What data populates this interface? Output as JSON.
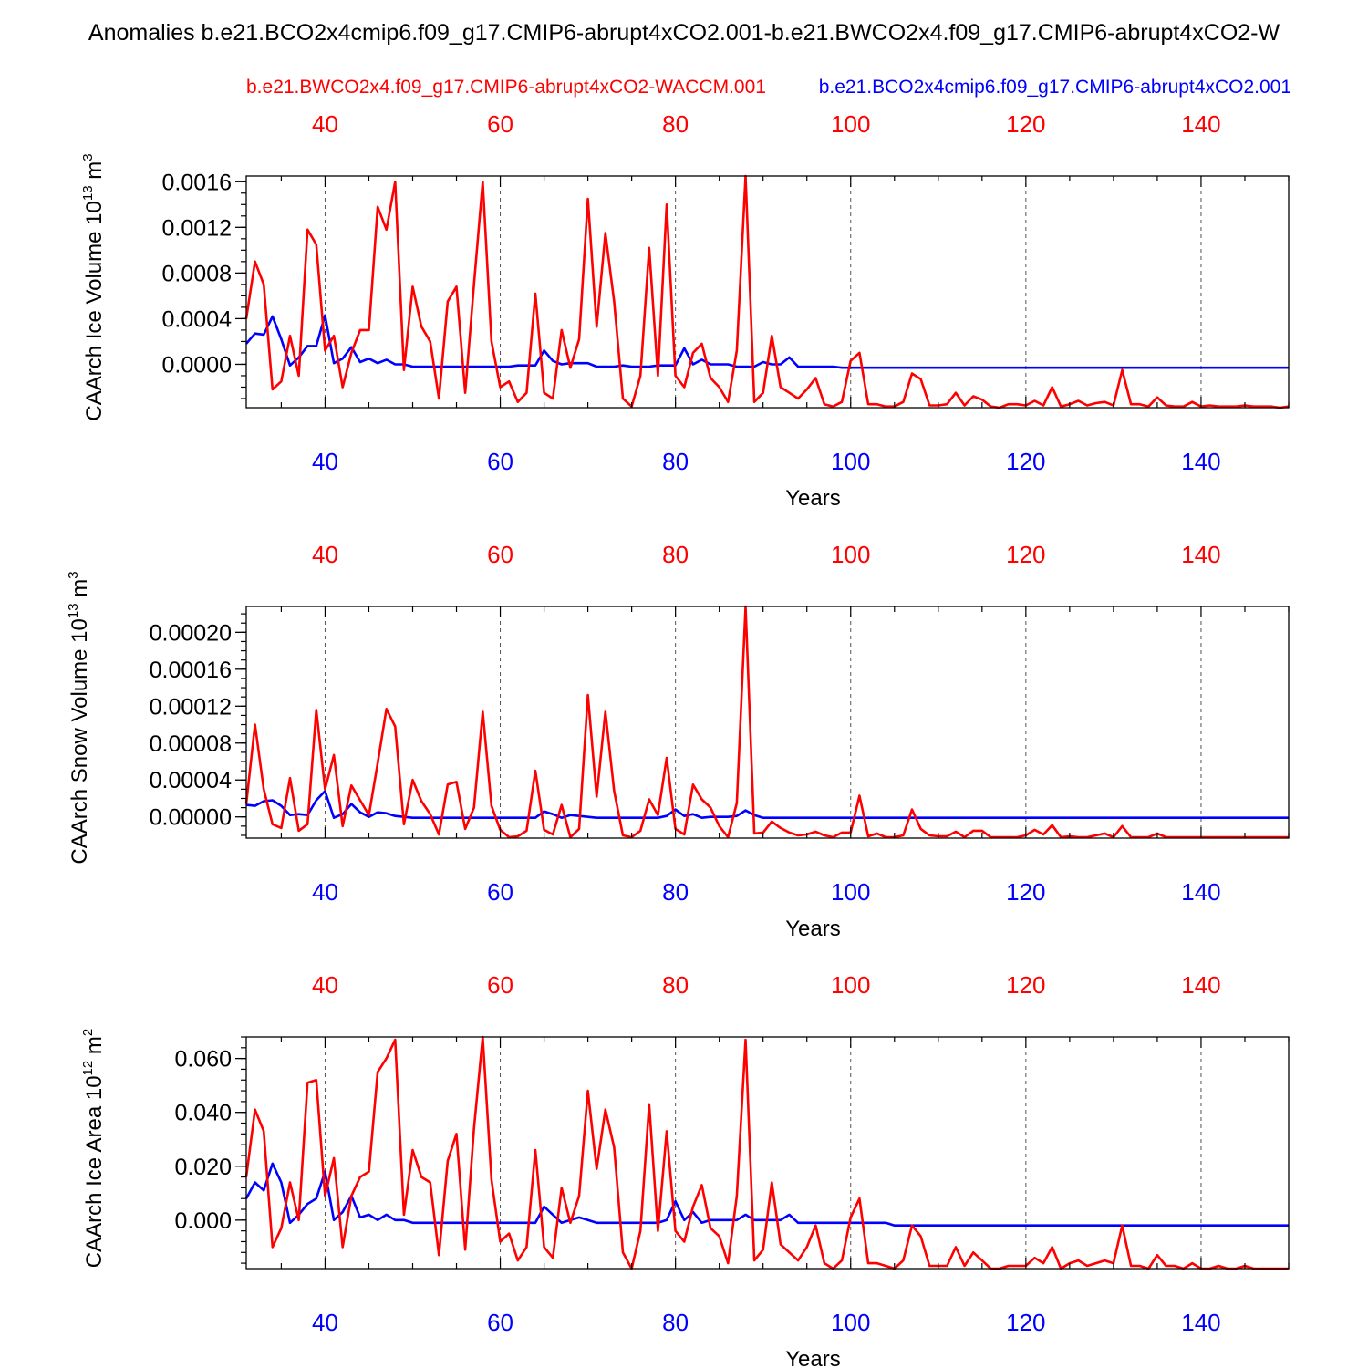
{
  "page_title": "Anomalies b.e21.BCO2x4cmip6.f09_g17.CMIP6-abrupt4xCO2.001-b.e21.BWCO2x4.f09_g17.CMIP6-abrupt4xCO2-W",
  "legend": {
    "red_label": "b.e21.BWCO2x4.f09_g17.CMIP6-abrupt4xCO2-WACCM.001",
    "blue_label": "b.e21.BCO2x4cmip6.f09_g17.CMIP6-abrupt4xCO2.001"
  },
  "colors": {
    "red": "#ff0000",
    "blue": "#0000ff",
    "axis": "#000000"
  },
  "chart_data": [
    {
      "type": "line",
      "ylabel": "CAArch Ice Volume",
      "yunit_base": "10",
      "yunit_exp": "13",
      "yunit_tail": "m",
      "yunit_tail_exp": "3",
      "xlabel": "Years",
      "xlim": [
        31,
        150
      ],
      "ylim": [
        -0.00038,
        0.00165
      ],
      "x_ticks": [
        40,
        60,
        80,
        100,
        120,
        140
      ],
      "x_tick_labels_top": [
        "40",
        "60",
        "80",
        "100",
        "120",
        "140"
      ],
      "x_tick_labels_bottom": [
        "40",
        "60",
        "80",
        "100",
        "120",
        "140"
      ],
      "y_ticks": [
        0,
        0.0004,
        0.0008,
        0.0012,
        0.0016
      ],
      "y_tick_labels": [
        "0.0000",
        "0.0004",
        "0.0008",
        "0.0012",
        "0.0016"
      ],
      "y_minor_step": 0.0001,
      "start_year": 31,
      "series": [
        {
          "name": "b.e21.BWCO2x4.f09_g17.CMIP6-abrupt4xCO2-WACCM.001",
          "color": "#ff0000",
          "values": [
            0.0004,
            0.0009,
            0.0007,
            -0.00022,
            -0.00015,
            0.00025,
            -0.0001,
            0.00118,
            0.00105,
            0.00012,
            0.00025,
            -0.0002,
            0.0001,
            0.0003,
            0.0003,
            0.00138,
            0.00118,
            0.0016,
            -5e-05,
            0.00068,
            0.00033,
            0.0002,
            -0.0003,
            0.00055,
            0.00068,
            -0.00025,
            0.0007,
            0.0016,
            0.0002,
            -0.0002,
            -0.00015,
            -0.00033,
            -0.00025,
            0.00062,
            -0.00025,
            -0.0003,
            0.0003,
            -3e-05,
            0.00022,
            0.00145,
            0.00033,
            0.00115,
            0.00055,
            -0.0003,
            -0.00037,
            -0.0001,
            0.00102,
            -0.0001,
            0.0014,
            -0.0001,
            -0.0002,
            0.0001,
            0.00018,
            -0.00012,
            -0.0002,
            -0.00033,
            0.00012,
            0.00165,
            -0.00033,
            -0.00025,
            0.00025,
            -0.0002,
            -0.00025,
            -0.0003,
            -0.00022,
            -0.00012,
            -0.00035,
            -0.00037,
            -0.00033,
            3e-05,
            0.0001,
            -0.00035,
            -0.00035,
            -0.00037,
            -0.00037,
            -0.00033,
            -8e-05,
            -0.00013,
            -0.00036,
            -0.00036,
            -0.00035,
            -0.00025,
            -0.00036,
            -0.00028,
            -0.00031,
            -0.00037,
            -0.00038,
            -0.00035,
            -0.00035,
            -0.00036,
            -0.00032,
            -0.00036,
            -0.0002,
            -0.00037,
            -0.00035,
            -0.00032,
            -0.00036,
            -0.00034,
            -0.00033,
            -0.00036,
            -5e-05,
            -0.00035,
            -0.00035,
            -0.00037,
            -0.00029,
            -0.00036,
            -0.00037,
            -0.00037,
            -0.00033,
            -0.00037,
            -0.00036,
            -0.00037,
            -0.00037,
            -0.00037,
            -0.00036,
            -0.00037,
            -0.00037,
            -0.00037,
            -0.00038,
            -0.00037
          ]
        },
        {
          "name": "b.e21.BCO2x4cmip6.f09_g17.CMIP6-abrupt4xCO2.001",
          "color": "#0000ff",
          "values": [
            0.00018,
            0.00027,
            0.00026,
            0.00042,
            0.00022,
            -1e-05,
            6e-05,
            0.00016,
            0.00016,
            0.00043,
            1e-05,
            5e-05,
            0.00015,
            2e-05,
            5e-05,
            1e-05,
            4e-05,
            0.0,
            0.0,
            -2e-05,
            -2e-05,
            -2e-05,
            -2e-05,
            -2e-05,
            -2e-05,
            -2e-05,
            -2e-05,
            -2e-05,
            -2e-05,
            -2e-05,
            -2e-05,
            -1e-05,
            -1e-05,
            -1e-05,
            0.00012,
            3e-05,
            0.0,
            1e-05,
            1e-05,
            1e-05,
            -2e-05,
            -2e-05,
            -2e-05,
            -1e-05,
            -2e-05,
            -2e-05,
            -2e-05,
            -1e-05,
            -1e-05,
            -1e-05,
            0.00014,
            0.0,
            4e-05,
            0.0,
            0.0,
            0.0,
            -2e-05,
            -2e-05,
            -2e-05,
            2e-05,
            0.0,
            0.0,
            6e-05,
            -2e-05,
            -2e-05,
            -2e-05,
            -2e-05,
            -2e-05,
            -3e-05,
            -3e-05,
            -3e-05,
            -3e-05,
            -3e-05,
            -3e-05,
            -3e-05,
            -3e-05,
            -3e-05,
            -3e-05,
            -3e-05,
            -3e-05,
            -3e-05,
            -3e-05,
            -3e-05,
            -3e-05,
            -3e-05,
            -3e-05,
            -3e-05,
            -3e-05,
            -3e-05,
            -3e-05,
            -3e-05,
            -3e-05,
            -3e-05,
            -3e-05,
            -3e-05,
            -3e-05,
            -3e-05,
            -3e-05,
            -3e-05,
            -3e-05,
            -3e-05,
            -3e-05,
            -3e-05,
            -3e-05,
            -3e-05,
            -3e-05,
            -3e-05,
            -3e-05,
            -3e-05,
            -3e-05,
            -3e-05,
            -3e-05,
            -3e-05,
            -3e-05,
            -3e-05,
            -3e-05,
            -3e-05,
            -3e-05,
            -3e-05,
            -3e-05
          ]
        }
      ]
    },
    {
      "type": "line",
      "ylabel": "CAArch Snow Volume",
      "yunit_base": "10",
      "yunit_exp": "13",
      "yunit_tail": "m",
      "yunit_tail_exp": "3",
      "xlabel": "Years",
      "xlim": [
        31,
        150
      ],
      "ylim": [
        -2.3e-05,
        0.000228
      ],
      "x_ticks": [
        40,
        60,
        80,
        100,
        120,
        140
      ],
      "x_tick_labels_top": [
        "40",
        "60",
        "80",
        "100",
        "120",
        "140"
      ],
      "x_tick_labels_bottom": [
        "40",
        "60",
        "80",
        "100",
        "120",
        "140"
      ],
      "y_ticks": [
        0,
        4e-05,
        8e-05,
        0.00012,
        0.00016,
        0.0002
      ],
      "y_tick_labels": [
        "0.00000",
        "0.00004",
        "0.00008",
        "0.00012",
        "0.00016",
        "0.00020"
      ],
      "y_minor_step": 1e-05,
      "start_year": 31,
      "series": [
        {
          "name": "b.e21.BWCO2x4.f09_g17.CMIP6-abrupt4xCO2-WACCM.001",
          "color": "#ff0000",
          "values": [
            1.4e-05,
            0.0001,
            3e-05,
            -8e-06,
            -1.2e-05,
            4.2e-05,
            -1.5e-05,
            -8e-06,
            0.000116,
            3e-05,
            6.7e-05,
            -1e-05,
            3.4e-05,
            1.8e-05,
            2e-06,
            5.8e-05,
            0.000117,
            9.8e-05,
            -8e-06,
            4e-05,
            1.7e-05,
            3e-06,
            -1.9e-05,
            3.5e-05,
            3.8e-05,
            -1.3e-05,
            1e-05,
            0.000114,
            1.2e-05,
            -1.4e-05,
            -2.2e-05,
            -2.1e-05,
            -1.5e-05,
            5e-05,
            -1.4e-05,
            -1.9e-05,
            1.3e-05,
            -2.2e-05,
            -1.3e-05,
            0.000132,
            2.2e-05,
            0.000114,
            2.8e-05,
            -2e-05,
            -2.2e-05,
            -1.5e-05,
            1.9e-05,
            2e-06,
            6.4e-05,
            -1.3e-05,
            -1.9e-05,
            3.5e-05,
            1.9e-05,
            1e-05,
            -1e-05,
            -2.2e-05,
            1.5e-05,
            0.000228,
            -1.8e-05,
            -1.7e-05,
            -5e-06,
            -1.2e-05,
            -1.7e-05,
            -2e-05,
            -1.9e-05,
            -1.6e-05,
            -2e-05,
            -2.2e-05,
            -1.7e-05,
            -1.7e-05,
            2.3e-05,
            -2.1e-05,
            -1.8e-05,
            -2.2e-05,
            -2.2e-05,
            -2e-05,
            8e-06,
            -1.3e-05,
            -2e-05,
            -2.1e-05,
            -2.1e-05,
            -1.6e-05,
            -2.2e-05,
            -1.5e-05,
            -1.5e-05,
            -2.2e-05,
            -2.2e-05,
            -2.2e-05,
            -2.2e-05,
            -2e-05,
            -1.4e-05,
            -1.9e-05,
            -9e-06,
            -2.2e-05,
            -2.1e-05,
            -2.2e-05,
            -2.2e-05,
            -2e-05,
            -1.8e-05,
            -2.2e-05,
            -1e-05,
            -2.2e-05,
            -2.2e-05,
            -2.2e-05,
            -1.8e-05,
            -2.2e-05,
            -2.2e-05,
            -2.2e-05,
            -2.2e-05,
            -2.2e-05,
            -2.2e-05,
            -2.2e-05,
            -2.2e-05,
            -2.2e-05,
            -2.2e-05,
            -2.2e-05,
            -2.2e-05,
            -2.2e-05,
            -2.2e-05,
            -2.2e-05
          ]
        },
        {
          "name": "b.e21.BCO2x4cmip6.f09_g17.CMIP6-abrupt4xCO2.001",
          "color": "#0000ff",
          "values": [
            1.3e-05,
            1.2e-05,
            1.7e-05,
            1.8e-05,
            1.2e-05,
            2e-06,
            3e-06,
            2e-06,
            1.8e-05,
            2.8e-05,
            -1e-06,
            3e-06,
            1.4e-05,
            5e-06,
            0.0,
            5e-06,
            4e-06,
            1e-06,
            0.0,
            -1e-06,
            -1e-06,
            -1e-06,
            -1e-06,
            -1e-06,
            -1e-06,
            -1e-06,
            -1e-06,
            -1e-06,
            -1e-06,
            -1e-06,
            -1e-06,
            -1e-06,
            -1e-06,
            -1e-06,
            6e-06,
            3e-06,
            -1e-06,
            2e-06,
            1e-06,
            0.0,
            -1e-06,
            -1e-06,
            -1e-06,
            -1e-06,
            -1e-06,
            -1e-06,
            -1e-06,
            -1e-06,
            1e-06,
            8e-06,
            1e-06,
            3e-06,
            -1e-06,
            0.0,
            0.0,
            0.0,
            1e-06,
            7e-06,
            2e-06,
            -1e-06,
            -1e-06,
            -1e-06,
            -1e-06,
            -1e-06,
            -1e-06,
            -1e-06,
            -1e-06,
            -1e-06,
            -1e-06,
            -1e-06,
            -1e-06,
            -1e-06,
            -1e-06,
            -1e-06,
            -1e-06,
            -1e-06,
            -1e-06,
            -1e-06,
            -1e-06,
            -1e-06,
            -1e-06,
            -1e-06,
            -1e-06,
            -1e-06,
            -1e-06,
            -1e-06,
            -1e-06,
            -1e-06,
            -1e-06,
            -1e-06,
            -1e-06,
            -1e-06,
            -1e-06,
            -1e-06,
            -1e-06,
            -1e-06,
            -1e-06,
            -1e-06,
            -1e-06,
            -1e-06,
            -1e-06,
            -1e-06,
            -1e-06,
            -1e-06,
            -1e-06,
            -1e-06,
            -1e-06,
            -1e-06,
            -1e-06,
            -1e-06,
            -1e-06,
            -1e-06,
            -1e-06,
            -1e-06,
            -1e-06,
            -1e-06,
            -1e-06,
            -1e-06,
            -1e-06,
            -1e-06
          ]
        }
      ]
    },
    {
      "type": "line",
      "ylabel": "CAArch Ice Area",
      "yunit_base": "10",
      "yunit_exp": "12",
      "yunit_tail": "m",
      "yunit_tail_exp": "2",
      "xlabel": "Years",
      "xlim": [
        31,
        150
      ],
      "ylim": [
        -0.018,
        0.068
      ],
      "x_ticks": [
        40,
        60,
        80,
        100,
        120,
        140
      ],
      "x_tick_labels_top": [
        "40",
        "60",
        "80",
        "100",
        "120",
        "140"
      ],
      "x_tick_labels_bottom": [
        "40",
        "60",
        "80",
        "100",
        "120",
        "140"
      ],
      "y_ticks": [
        0,
        0.02,
        0.04,
        0.06
      ],
      "y_tick_labels": [
        "0.000",
        "0.020",
        "0.040",
        "0.060"
      ],
      "y_minor_step": 0.004,
      "start_year": 31,
      "series": [
        {
          "name": "b.e21.BWCO2x4.f09_g17.CMIP6-abrupt4xCO2-WACCM.001",
          "color": "#ff0000",
          "values": [
            0.016,
            0.041,
            0.033,
            -0.01,
            -0.003,
            0.014,
            0.0,
            0.051,
            0.052,
            0.009,
            0.023,
            -0.01,
            0.009,
            0.016,
            0.018,
            0.055,
            0.06,
            0.067,
            0.002,
            0.026,
            0.016,
            0.014,
            -0.013,
            0.022,
            0.032,
            -0.011,
            0.034,
            0.068,
            0.015,
            -0.008,
            -0.005,
            -0.015,
            -0.01,
            0.026,
            -0.01,
            -0.014,
            0.012,
            -0.001,
            0.009,
            0.048,
            0.019,
            0.041,
            0.027,
            -0.012,
            -0.018,
            -0.004,
            0.043,
            -0.004,
            0.033,
            -0.004,
            -0.008,
            0.005,
            0.013,
            -0.003,
            -0.006,
            -0.016,
            0.009,
            0.067,
            -0.015,
            -0.011,
            0.014,
            -0.009,
            -0.012,
            -0.015,
            -0.01,
            -0.002,
            -0.016,
            -0.018,
            -0.015,
            0.001,
            0.008,
            -0.016,
            -0.016,
            -0.017,
            -0.018,
            -0.015,
            -0.002,
            -0.006,
            -0.017,
            -0.017,
            -0.017,
            -0.01,
            -0.017,
            -0.012,
            -0.015,
            -0.018,
            -0.018,
            -0.017,
            -0.017,
            -0.017,
            -0.014,
            -0.016,
            -0.01,
            -0.018,
            -0.016,
            -0.015,
            -0.017,
            -0.016,
            -0.015,
            -0.016,
            -0.002,
            -0.017,
            -0.017,
            -0.018,
            -0.013,
            -0.017,
            -0.017,
            -0.018,
            -0.016,
            -0.018,
            -0.018,
            -0.017,
            -0.018,
            -0.018,
            -0.017,
            -0.018,
            -0.018,
            -0.018,
            -0.018,
            -0.018
          ]
        },
        {
          "name": "b.e21.BCO2x4cmip6.f09_g17.CMIP6-abrupt4xCO2.001",
          "color": "#0000ff",
          "values": [
            0.008,
            0.014,
            0.011,
            0.021,
            0.014,
            -0.001,
            0.002,
            0.006,
            0.008,
            0.018,
            0.0,
            0.003,
            0.009,
            0.001,
            0.002,
            0.0,
            0.002,
            0.0,
            0.0,
            -0.001,
            -0.001,
            -0.001,
            -0.001,
            -0.001,
            -0.001,
            -0.001,
            -0.001,
            -0.001,
            -0.001,
            -0.001,
            -0.001,
            -0.001,
            -0.001,
            -0.001,
            0.005,
            0.002,
            -0.001,
            0.0,
            0.001,
            0.0,
            -0.001,
            -0.001,
            -0.001,
            -0.001,
            -0.001,
            -0.001,
            -0.001,
            -0.001,
            0.0,
            0.007,
            0.0,
            0.003,
            -0.001,
            0.0,
            0.0,
            0.0,
            0.0,
            0.002,
            0.0,
            0.0,
            0.0,
            0.0,
            0.002,
            -0.001,
            -0.001,
            -0.001,
            -0.001,
            -0.001,
            -0.001,
            -0.001,
            -0.001,
            -0.001,
            -0.001,
            -0.001,
            -0.002,
            -0.002,
            -0.002,
            -0.002,
            -0.002,
            -0.002,
            -0.002,
            -0.002,
            -0.002,
            -0.002,
            -0.002,
            -0.002,
            -0.002,
            -0.002,
            -0.002,
            -0.002,
            -0.002,
            -0.002,
            -0.002,
            -0.002,
            -0.002,
            -0.002,
            -0.002,
            -0.002,
            -0.002,
            -0.002,
            -0.002,
            -0.002,
            -0.002,
            -0.002,
            -0.002,
            -0.002,
            -0.002,
            -0.002,
            -0.002,
            -0.002,
            -0.002,
            -0.002,
            -0.002,
            -0.002,
            -0.002,
            -0.002,
            -0.002,
            -0.002,
            -0.002,
            -0.002
          ]
        }
      ]
    }
  ]
}
